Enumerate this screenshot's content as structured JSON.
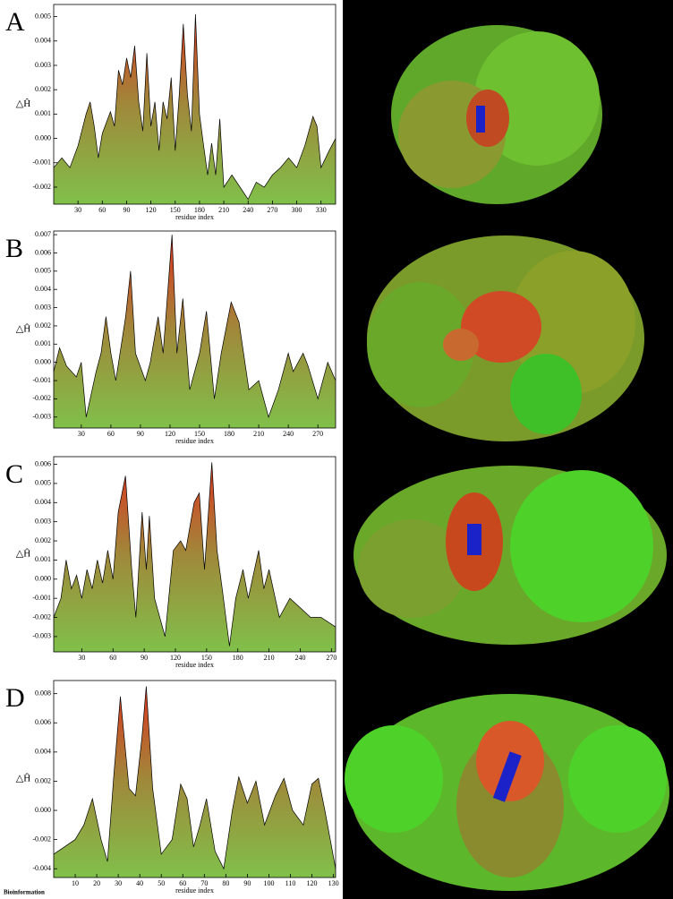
{
  "footer": "Bioinformation",
  "chart_data": [
    {
      "type": "area",
      "panel": "A",
      "x_label": "residue index",
      "y_label": "△Ĥ",
      "gradient": [
        "#e0301e",
        "#a0883a",
        "#80c04a"
      ],
      "xlim": [
        0,
        348
      ],
      "xticks": [
        30,
        60,
        90,
        120,
        150,
        180,
        210,
        240,
        270,
        300,
        330
      ],
      "ylim": [
        -0.0027,
        0.0055
      ],
      "yticks": [
        -0.002,
        -0.001,
        {
          "value": 0,
          "label": "0.000"
        },
        0.001,
        0.002,
        0.003,
        0.004,
        0.005
      ],
      "x": [
        0,
        10,
        20,
        30,
        40,
        45,
        50,
        55,
        60,
        70,
        75,
        80,
        85,
        90,
        95,
        100,
        105,
        110,
        115,
        120,
        125,
        130,
        135,
        140,
        145,
        150,
        155,
        160,
        165,
        170,
        175,
        180,
        185,
        190,
        195,
        200,
        205,
        210,
        220,
        230,
        240,
        250,
        260,
        270,
        280,
        290,
        300,
        310,
        320,
        325,
        330,
        340,
        348
      ],
      "values": [
        -0.0012,
        -0.0008,
        -0.0012,
        -0.0003,
        0.001,
        0.0015,
        0.0005,
        -0.0008,
        0.0002,
        0.0011,
        0.0005,
        0.0028,
        0.0022,
        0.0033,
        0.0025,
        0.0038,
        0.0015,
        0.0003,
        0.0035,
        0.0005,
        0.0015,
        -0.0005,
        0.0015,
        0.0008,
        0.0025,
        -0.0005,
        0.0018,
        0.0047,
        0.0018,
        0.0003,
        0.0051,
        0.001,
        -0.0003,
        -0.0015,
        -0.0002,
        -0.0015,
        0.0008,
        -0.002,
        -0.0015,
        -0.002,
        -0.0025,
        -0.0018,
        -0.002,
        -0.0015,
        -0.0012,
        -0.0008,
        -0.0012,
        -0.0003,
        0.0009,
        0.0005,
        -0.0012,
        -0.0005,
        0
      ]
    },
    {
      "type": "area",
      "panel": "B",
      "x_label": "residue index",
      "y_label": "△Ĥ",
      "gradient": [
        "#e0301e",
        "#a0883a",
        "#80c04a"
      ],
      "xlim": [
        2,
        288
      ],
      "xticks": [
        30,
        60,
        90,
        120,
        150,
        180,
        210,
        240,
        270
      ],
      "ylim": [
        -0.0036,
        0.0072
      ],
      "yticks": [
        -0.003,
        -0.002,
        -0.001,
        {
          "value": 0,
          "label": "0.000"
        },
        0.001,
        0.002,
        0.003,
        0.004,
        0.005,
        0.006,
        0.007
      ],
      "x": [
        2,
        8,
        15,
        25,
        30,
        35,
        45,
        50,
        55,
        60,
        65,
        75,
        80,
        85,
        95,
        100,
        108,
        113,
        122,
        127,
        133,
        140,
        150,
        157,
        165,
        172,
        182,
        190,
        200,
        210,
        220,
        230,
        240,
        245,
        255,
        260,
        270,
        280,
        288
      ],
      "values": [
        -0.0005,
        0.0008,
        -0.0002,
        -0.0008,
        0,
        -0.003,
        -0.0005,
        0.0005,
        0.0025,
        0.0005,
        -0.001,
        0.0025,
        0.005,
        0.0005,
        -0.001,
        0,
        0.0025,
        0.0005,
        0.007,
        0.0005,
        0.0035,
        -0.0015,
        0.0005,
        0.0028,
        -0.002,
        0.0005,
        0.0033,
        0.0022,
        -0.0015,
        -0.001,
        -0.003,
        -0.0015,
        0.0005,
        -0.0005,
        0.0005,
        -0.0002,
        -0.002,
        0,
        -0.001
      ]
    },
    {
      "type": "area",
      "panel": "C",
      "x_label": "residue index",
      "y_label": "△Ĥ",
      "gradient": [
        "#e0301e",
        "#a0883a",
        "#80c04a"
      ],
      "xlim": [
        3,
        274
      ],
      "xticks": [
        30,
        60,
        90,
        120,
        150,
        180,
        210,
        240,
        270
      ],
      "ylim": [
        -0.0038,
        0.0064
      ],
      "yticks": [
        -0.003,
        -0.002,
        -0.001,
        {
          "value": 0,
          "label": "0.000"
        },
        0.001,
        0.002,
        0.003,
        0.004,
        0.005,
        0.006
      ],
      "x": [
        3,
        10,
        15,
        20,
        25,
        30,
        35,
        40,
        45,
        50,
        55,
        60,
        65,
        72,
        78,
        82,
        88,
        92,
        95,
        100,
        110,
        118,
        125,
        130,
        138,
        143,
        148,
        155,
        160,
        165,
        172,
        178,
        185,
        190,
        200,
        205,
        210,
        220,
        230,
        240,
        250,
        260,
        274
      ],
      "values": [
        -0.002,
        -0.001,
        0.001,
        -0.0005,
        0.0002,
        -0.001,
        0.0005,
        -0.0005,
        0.001,
        -0.0002,
        0.0015,
        0,
        0.0035,
        0.0054,
        0.0005,
        -0.002,
        0.0035,
        0.0005,
        0.0033,
        -0.001,
        -0.003,
        0.0015,
        0.002,
        0.0015,
        0.004,
        0.0045,
        0.0005,
        0.0061,
        0.0015,
        -0.0005,
        -0.0035,
        -0.001,
        0.0005,
        -0.001,
        0.0015,
        -0.0005,
        0.0005,
        -0.002,
        -0.001,
        -0.0015,
        -0.002,
        -0.002,
        -0.0025
      ]
    },
    {
      "type": "area",
      "panel": "D",
      "x_label": "residue index",
      "y_label": "△Ĥ",
      "gradient": [
        "#e0301e",
        "#a0883a",
        "#80c04a"
      ],
      "xlim": [
        0,
        131
      ],
      "xticks": [
        10,
        20,
        30,
        40,
        50,
        60,
        70,
        80,
        90,
        100,
        110,
        120,
        130
      ],
      "ylim": [
        -0.0046,
        0.0089
      ],
      "yticks": [
        -0.004,
        -0.002,
        {
          "value": 0,
          "label": "0.000"
        },
        0.002,
        0.004,
        0.006,
        0.008
      ],
      "x": [
        0,
        5,
        10,
        14,
        18,
        22,
        25,
        28,
        31,
        35,
        38,
        41,
        43,
        46,
        50,
        55,
        59,
        62,
        65,
        68,
        71,
        75,
        79,
        83,
        86,
        90,
        94,
        98,
        103,
        107,
        111,
        116,
        120,
        123,
        126,
        131
      ],
      "values": [
        -0.003,
        -0.0025,
        -0.002,
        -0.001,
        0.0008,
        -0.002,
        -0.0035,
        0.0025,
        0.0078,
        0.0015,
        0.001,
        0.005,
        0.0085,
        0.0015,
        -0.003,
        -0.002,
        0.0018,
        0.0008,
        -0.0025,
        -0.001,
        0.0008,
        -0.0028,
        -0.004,
        0,
        0.0023,
        0.0005,
        0.002,
        -0.001,
        0.001,
        0.0022,
        0,
        -0.001,
        0.0018,
        0.0022,
        0,
        -0.004
      ]
    }
  ]
}
